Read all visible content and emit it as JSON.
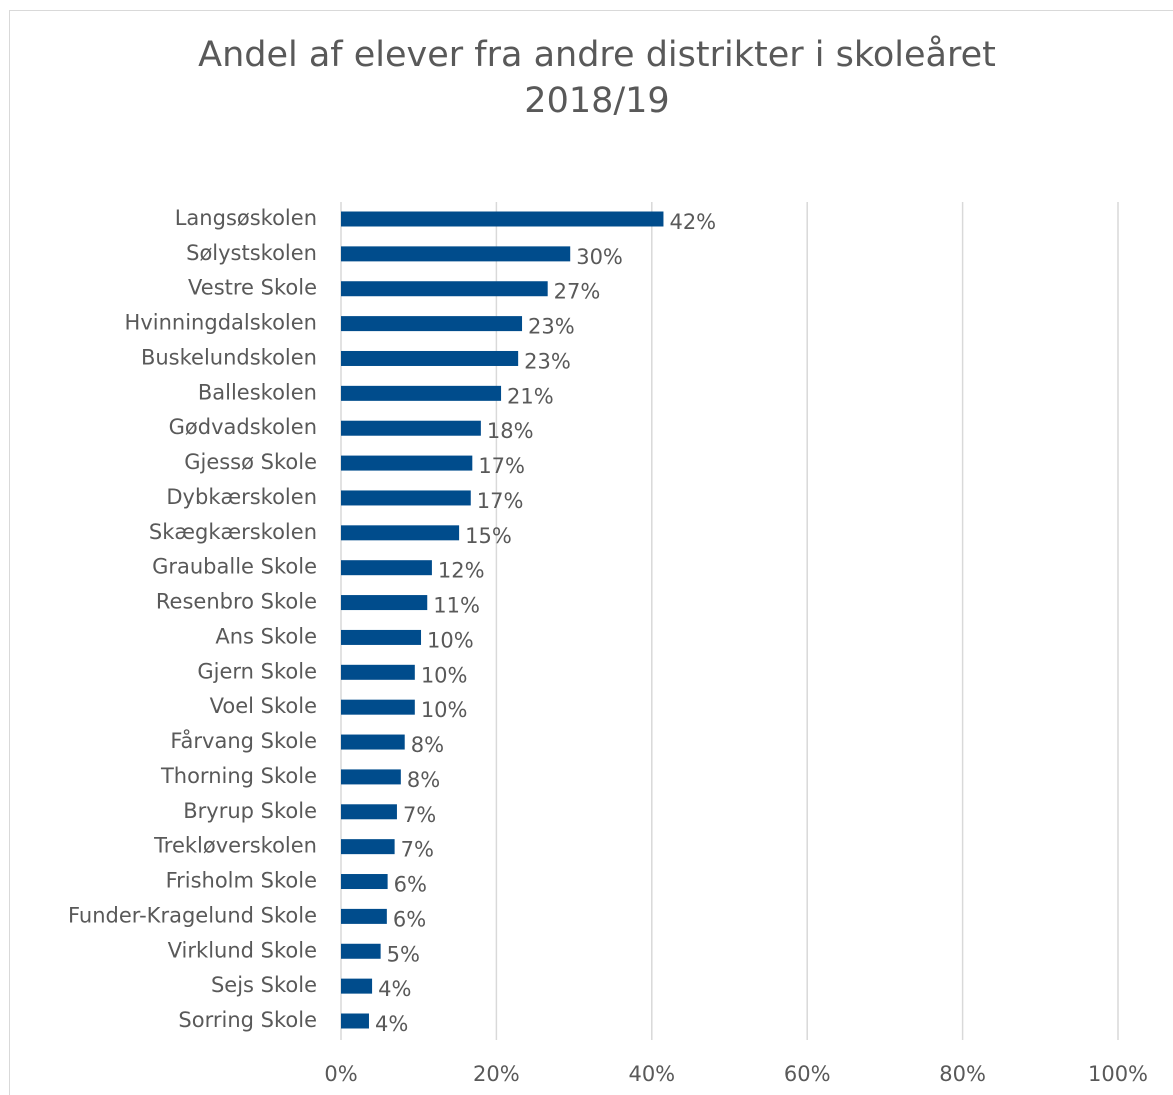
{
  "chart_data": {
    "type": "barh",
    "title": "Andel af elever fra andre distrikter i skoleåret 2018/19",
    "categories": [
      "Langsøskolen",
      "Sølystskolen",
      "Vestre Skole",
      "Hvinningdalskolen",
      "Buskelundskolen",
      "Balleskolen",
      "Gødvadskolen",
      "Gjessø Skole",
      "Dybkærskolen",
      "Skægkærskolen",
      "Grauballe Skole",
      "Resenbro Skole",
      "Ans Skole",
      "Gjern Skole",
      "Voel Skole",
      "Fårvang Skole",
      "Thorning Skole",
      "Bryrup Skole",
      "Trekløverskolen",
      "Frisholm Skole",
      "Funder-Kragelund Skole",
      "Virklund Skole",
      "Sejs Skole",
      "Sorring Skole"
    ],
    "values": [
      41.5,
      29.5,
      26.6,
      23.3,
      22.8,
      20.6,
      18.0,
      16.9,
      16.7,
      15.2,
      11.7,
      11.1,
      10.3,
      9.5,
      9.5,
      8.2,
      7.7,
      7.2,
      6.9,
      6.0,
      5.9,
      5.1,
      4.0,
      3.6
    ],
    "value_labels": [
      "42%",
      "30%",
      "27%",
      "23%",
      "23%",
      "21%",
      "18%",
      "17%",
      "17%",
      "15%",
      "12%",
      "11%",
      "10%",
      "10%",
      "10%",
      "8%",
      "8%",
      "7%",
      "7%",
      "6%",
      "6%",
      "5%",
      "4%",
      "4%"
    ],
    "color": "#004c8c",
    "xlim": [
      0,
      100
    ],
    "xticks": [
      {
        "value": 0,
        "label": "0%"
      },
      {
        "value": 20,
        "label": "20%"
      },
      {
        "value": 40,
        "label": "40%"
      },
      {
        "value": 60,
        "label": "60%"
      },
      {
        "value": 80,
        "label": "80%"
      },
      {
        "value": 100,
        "label": "100%"
      }
    ],
    "grid": true
  }
}
